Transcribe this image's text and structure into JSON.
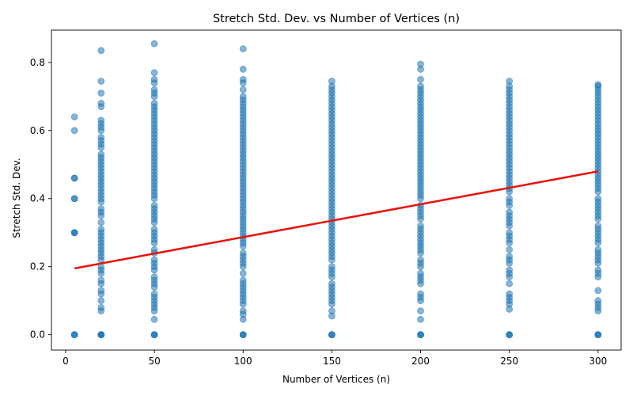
{
  "chart_data": {
    "type": "scatter",
    "title": "Stretch Std. Dev. vs Number of Vertices (n)",
    "xlabel": "Number of Vertices (n)",
    "ylabel": "Stretch Std. Dev.",
    "xlim": [
      -8,
      313
    ],
    "ylim": [
      -0.045,
      0.895
    ],
    "xticks": [
      0,
      50,
      100,
      150,
      200,
      250,
      300
    ],
    "yticks": [
      0.0,
      0.2,
      0.4,
      0.6,
      0.8
    ],
    "ytick_labels": [
      "0.0",
      "0.2",
      "0.4",
      "0.6",
      "0.8"
    ],
    "grid": false,
    "colors": {
      "points": "#1f77b4",
      "trend": "#e8120c"
    },
    "series": [
      {
        "kind": "points",
        "groups": [
          {
            "x": 5,
            "y": [
              0.0,
              0.0,
              0.0,
              0.3,
              0.3,
              0.3,
              0.4,
              0.4,
              0.46,
              0.46,
              0.6,
              0.64
            ]
          },
          {
            "x": 20,
            "y": [
              0.0,
              0.0,
              0.0,
              0.0,
              0.07,
              0.08,
              0.1,
              0.12,
              0.13,
              0.15,
              0.16,
              0.18,
              0.19,
              0.2,
              0.22,
              0.23,
              0.24,
              0.25,
              0.26,
              0.27,
              0.28,
              0.29,
              0.3,
              0.31,
              0.33,
              0.35,
              0.36,
              0.37,
              0.39,
              0.4,
              0.41,
              0.42,
              0.43,
              0.44,
              0.45,
              0.46,
              0.47,
              0.48,
              0.49,
              0.5,
              0.51,
              0.52,
              0.53,
              0.55,
              0.56,
              0.57,
              0.58,
              0.6,
              0.61,
              0.62,
              0.63,
              0.67,
              0.68,
              0.71,
              0.745,
              0.835
            ]
          },
          {
            "x": 50,
            "y": [
              0.0,
              0.0,
              0.0,
              0.045,
              0.07,
              0.08,
              0.09,
              0.1,
              0.11,
              0.12,
              0.14,
              0.15,
              0.16,
              0.17,
              0.19,
              0.2,
              0.21,
              0.22,
              0.24,
              0.25,
              0.27,
              0.28,
              0.29,
              0.3,
              0.31,
              0.33,
              0.34,
              0.35,
              0.36,
              0.37,
              0.38,
              0.4,
              0.41,
              0.42,
              0.43,
              0.44,
              0.45,
              0.46,
              0.47,
              0.48,
              0.49,
              0.5,
              0.51,
              0.52,
              0.53,
              0.54,
              0.55,
              0.56,
              0.57,
              0.58,
              0.59,
              0.6,
              0.61,
              0.62,
              0.63,
              0.64,
              0.65,
              0.66,
              0.67,
              0.68,
              0.7,
              0.71,
              0.72,
              0.74,
              0.75,
              0.77,
              0.855
            ]
          },
          {
            "x": 100,
            "y": [
              0.0,
              0.0,
              0.0,
              0.045,
              0.06,
              0.07,
              0.09,
              0.1,
              0.11,
              0.12,
              0.13,
              0.14,
              0.15,
              0.16,
              0.18,
              0.2,
              0.21,
              0.22,
              0.23,
              0.24,
              0.26,
              0.27,
              0.28,
              0.29,
              0.3,
              0.31,
              0.32,
              0.33,
              0.34,
              0.35,
              0.36,
              0.37,
              0.38,
              0.39,
              0.4,
              0.41,
              0.42,
              0.43,
              0.44,
              0.45,
              0.46,
              0.47,
              0.48,
              0.49,
              0.5,
              0.51,
              0.52,
              0.53,
              0.54,
              0.55,
              0.56,
              0.57,
              0.58,
              0.59,
              0.6,
              0.61,
              0.62,
              0.63,
              0.64,
              0.65,
              0.66,
              0.67,
              0.68,
              0.69,
              0.7,
              0.72,
              0.74,
              0.75,
              0.78,
              0.84
            ]
          },
          {
            "x": 150,
            "y": [
              0.0,
              0.0,
              0.0,
              0.055,
              0.07,
              0.09,
              0.1,
              0.11,
              0.12,
              0.13,
              0.14,
              0.15,
              0.17,
              0.18,
              0.19,
              0.2,
              0.22,
              0.23,
              0.24,
              0.25,
              0.26,
              0.27,
              0.28,
              0.29,
              0.3,
              0.31,
              0.32,
              0.33,
              0.34,
              0.35,
              0.36,
              0.37,
              0.38,
              0.39,
              0.4,
              0.41,
              0.42,
              0.43,
              0.44,
              0.45,
              0.46,
              0.47,
              0.48,
              0.49,
              0.5,
              0.51,
              0.52,
              0.53,
              0.54,
              0.55,
              0.56,
              0.57,
              0.58,
              0.59,
              0.6,
              0.61,
              0.62,
              0.63,
              0.64,
              0.65,
              0.66,
              0.67,
              0.68,
              0.69,
              0.7,
              0.71,
              0.72,
              0.73,
              0.745
            ]
          },
          {
            "x": 200,
            "y": [
              0.0,
              0.0,
              0.0,
              0.045,
              0.07,
              0.1,
              0.11,
              0.12,
              0.15,
              0.16,
              0.17,
              0.18,
              0.2,
              0.21,
              0.22,
              0.24,
              0.25,
              0.26,
              0.27,
              0.28,
              0.29,
              0.3,
              0.31,
              0.32,
              0.34,
              0.35,
              0.36,
              0.37,
              0.38,
              0.4,
              0.41,
              0.42,
              0.43,
              0.44,
              0.45,
              0.46,
              0.47,
              0.48,
              0.49,
              0.5,
              0.51,
              0.52,
              0.53,
              0.54,
              0.55,
              0.56,
              0.57,
              0.58,
              0.59,
              0.6,
              0.61,
              0.62,
              0.63,
              0.64,
              0.65,
              0.66,
              0.67,
              0.68,
              0.69,
              0.7,
              0.71,
              0.72,
              0.73,
              0.75,
              0.78,
              0.795
            ]
          },
          {
            "x": 250,
            "y": [
              0.0,
              0.0,
              0.0,
              0.075,
              0.09,
              0.1,
              0.11,
              0.12,
              0.15,
              0.17,
              0.18,
              0.19,
              0.21,
              0.22,
              0.23,
              0.25,
              0.27,
              0.28,
              0.29,
              0.3,
              0.32,
              0.33,
              0.34,
              0.35,
              0.36,
              0.38,
              0.39,
              0.4,
              0.42,
              0.43,
              0.44,
              0.45,
              0.46,
              0.47,
              0.48,
              0.49,
              0.5,
              0.51,
              0.52,
              0.53,
              0.54,
              0.55,
              0.56,
              0.57,
              0.58,
              0.59,
              0.6,
              0.61,
              0.62,
              0.63,
              0.64,
              0.65,
              0.66,
              0.67,
              0.68,
              0.69,
              0.7,
              0.71,
              0.72,
              0.73,
              0.745
            ]
          },
          {
            "x": 300,
            "y": [
              0.0,
              0.0,
              0.0,
              0.07,
              0.08,
              0.09,
              0.1,
              0.13,
              0.17,
              0.18,
              0.19,
              0.21,
              0.22,
              0.23,
              0.24,
              0.25,
              0.27,
              0.28,
              0.29,
              0.3,
              0.31,
              0.32,
              0.34,
              0.35,
              0.36,
              0.37,
              0.38,
              0.39,
              0.4,
              0.42,
              0.43,
              0.44,
              0.45,
              0.46,
              0.47,
              0.48,
              0.49,
              0.5,
              0.51,
              0.52,
              0.53,
              0.54,
              0.55,
              0.56,
              0.57,
              0.58,
              0.59,
              0.6,
              0.61,
              0.62,
              0.63,
              0.64,
              0.65,
              0.66,
              0.67,
              0.68,
              0.69,
              0.7,
              0.71,
              0.72,
              0.73,
              0.735
            ]
          }
        ]
      },
      {
        "kind": "trend",
        "x": [
          5,
          300
        ],
        "y": [
          0.195,
          0.48
        ]
      }
    ]
  }
}
